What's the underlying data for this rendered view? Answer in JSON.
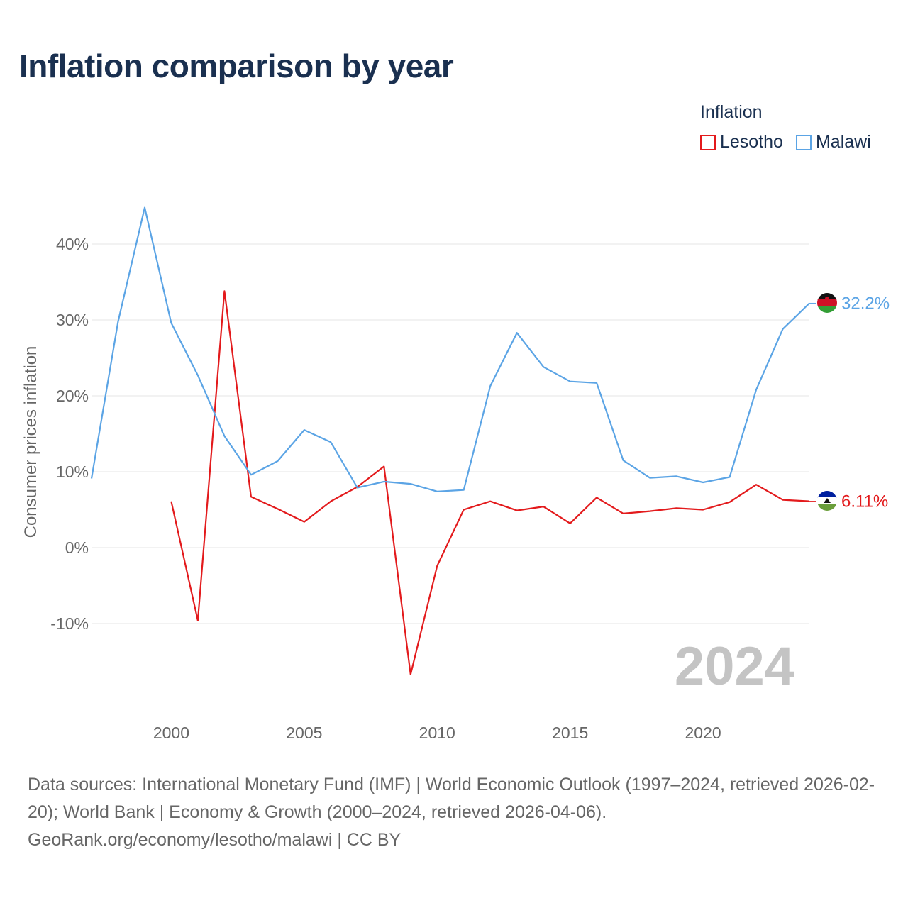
{
  "title": "Inflation comparison by year",
  "legend": {
    "title": "Inflation",
    "items": [
      {
        "name": "Lesotho",
        "color": "#e31a1c"
      },
      {
        "name": "Malawi",
        "color": "#5ba4e5"
      }
    ]
  },
  "watermark_year": "2024",
  "chart_data": {
    "type": "line",
    "title": "Inflation comparison by year",
    "xlabel": "",
    "ylabel": "Consumer prices inflation",
    "xlim": [
      1997,
      2024
    ],
    "ylim": [
      -20,
      45
    ],
    "x_ticks": [
      2000,
      2005,
      2010,
      2015,
      2020
    ],
    "y_ticks": [
      -10,
      0,
      10,
      20,
      30,
      40
    ],
    "y_tick_labels": [
      "-10%",
      "0%",
      "10%",
      "20%",
      "30%",
      "40%"
    ],
    "grid": true,
    "legend_position": "top-right",
    "series": [
      {
        "name": "Lesotho",
        "color": "#e31a1c",
        "end_label": "6.11%",
        "x": [
          2000,
          2001,
          2002,
          2003,
          2004,
          2005,
          2006,
          2007,
          2008,
          2009,
          2010,
          2011,
          2012,
          2013,
          2014,
          2015,
          2016,
          2017,
          2018,
          2019,
          2020,
          2021,
          2022,
          2023,
          2024
        ],
        "values": [
          6.1,
          -9.6,
          33.8,
          6.7,
          5.1,
          3.4,
          6.1,
          8.0,
          10.7,
          -16.7,
          -2.4,
          5.0,
          6.1,
          4.9,
          5.4,
          3.2,
          6.6,
          4.5,
          4.8,
          5.2,
          5.0,
          6.0,
          8.3,
          6.3,
          6.11
        ]
      },
      {
        "name": "Malawi",
        "color": "#5ba4e5",
        "end_label": "32.2%",
        "x": [
          1997,
          1998,
          1999,
          2000,
          2001,
          2002,
          2003,
          2004,
          2005,
          2006,
          2007,
          2008,
          2009,
          2010,
          2011,
          2012,
          2013,
          2014,
          2015,
          2016,
          2017,
          2018,
          2019,
          2020,
          2021,
          2022,
          2023,
          2024
        ],
        "values": [
          9.1,
          29.8,
          44.8,
          29.6,
          22.7,
          14.7,
          9.6,
          11.4,
          15.5,
          13.9,
          7.9,
          8.7,
          8.4,
          7.4,
          7.6,
          21.3,
          28.3,
          23.8,
          21.9,
          21.7,
          11.5,
          9.2,
          9.4,
          8.6,
          9.3,
          20.8,
          28.8,
          32.2
        ]
      }
    ]
  },
  "footer": {
    "sources": "Data sources: International Monetary Fund (IMF) | World Economic Outlook (1997–2024, retrieved 2026-02-20); World Bank | Economy & Growth (2000–2024, retrieved 2026-04-06).",
    "credit": "GeoRank.org/economy/lesotho/malawi | CC BY"
  }
}
